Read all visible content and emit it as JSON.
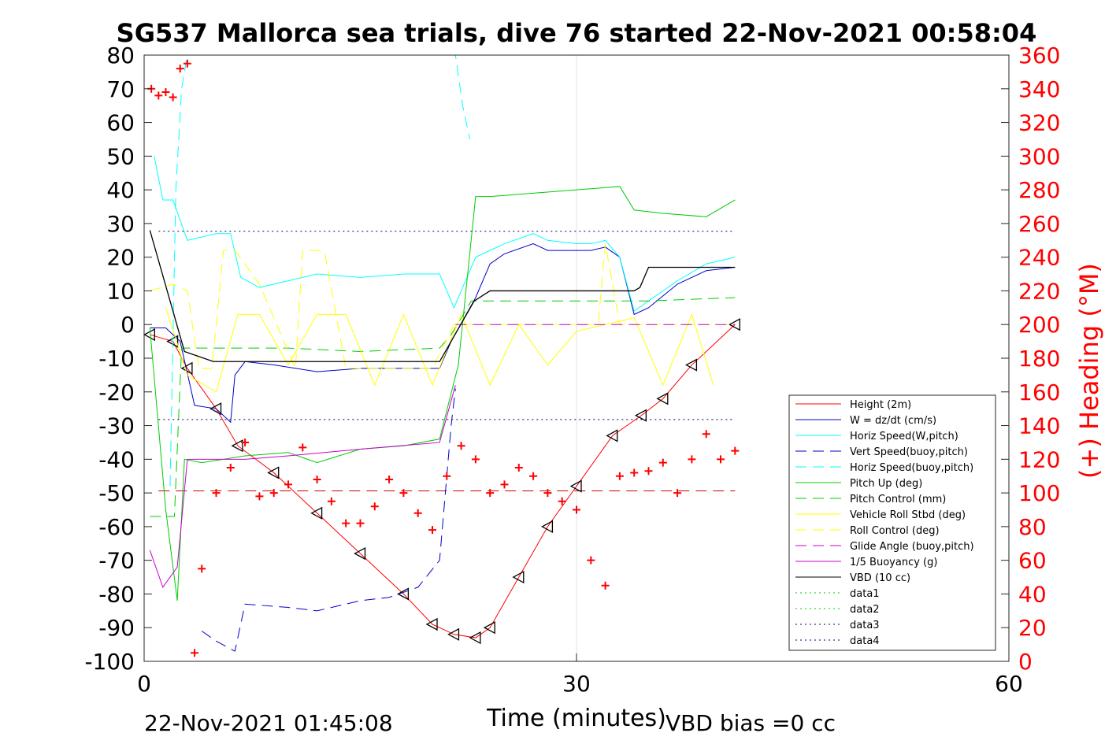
{
  "chart_data": {
    "type": "line",
    "title": "SG537 Mallorca sea trials, dive 76 started 22-Nov-2021 00:58:04",
    "xlabel": "Time (minutes)",
    "ylabel_right": "(+) Heading (°M)",
    "xlim": [
      0,
      60
    ],
    "ylim": [
      -100,
      80
    ],
    "ylim_right": [
      0,
      360
    ],
    "x_ticks": [
      "0",
      "30",
      "60"
    ],
    "y_ticks": [
      "80",
      "70",
      "60",
      "50",
      "40",
      "30",
      "20",
      "10",
      "0",
      "-10",
      "-20",
      "-30",
      "-40",
      "-50",
      "-60",
      "-70",
      "-80",
      "-90",
      "-100"
    ],
    "y_right_ticks": [
      "360",
      "340",
      "320",
      "300",
      "280",
      "260",
      "240",
      "220",
      "200",
      "180",
      "160",
      "140",
      "120",
      "100",
      "80",
      "60",
      "40",
      "20",
      "0"
    ],
    "grid": "x-only",
    "legend_position": "bottom-right",
    "footer_left": "22-Nov-2021 01:45:08",
    "footer_right": "VBD bias =0 cc",
    "series": [
      {
        "name": "Height (2m)",
        "color": "#ff0000",
        "style": "solid",
        "marker": "triangle",
        "x": [
          0.4,
          2,
          3,
          5,
          6.5,
          9,
          12,
          15,
          18,
          20,
          21.5,
          23,
          24,
          26,
          28,
          30,
          32.5,
          34.5,
          36,
          38,
          41
        ],
        "y": [
          -3,
          -5,
          -13,
          -25,
          -36,
          -44,
          -56,
          -68,
          -80,
          -89,
          -92,
          -93,
          -90,
          -75,
          -60,
          -48,
          -33,
          -27,
          -22,
          -12,
          0
        ]
      },
      {
        "name": "W = dz/dt (cm/s)",
        "color": "#0000cc",
        "style": "solid",
        "x": [
          0.4,
          1.5,
          2.5,
          3.5,
          5,
          6,
          6.3,
          7,
          9,
          12,
          15,
          18,
          20.5,
          21.3,
          23,
          24,
          25,
          27,
          28,
          30,
          31,
          32,
          33,
          34,
          35,
          37,
          39,
          41
        ],
        "y": [
          -1,
          -1,
          -5,
          -24,
          -25,
          -29,
          -15,
          -11,
          -12,
          -14,
          -13,
          -13,
          -13,
          -5,
          8,
          18,
          21,
          24,
          22,
          22,
          22,
          23,
          20,
          3,
          5,
          12,
          16,
          17
        ]
      },
      {
        "name": "Horiz Speed(W,pitch)",
        "color": "#00ffff",
        "style": "solid",
        "x": [
          0.7,
          1.3,
          2,
          3,
          5,
          6,
          6.7,
          8,
          10,
          12,
          15,
          18,
          20.5,
          21.5,
          23,
          24,
          25,
          27,
          28,
          30,
          31,
          32,
          33,
          34,
          35,
          37,
          39,
          41
        ],
        "y": [
          50,
          37,
          37,
          25,
          27,
          27,
          14,
          11,
          13,
          15,
          14,
          15,
          15,
          5,
          20,
          22,
          24,
          27,
          25,
          24,
          24,
          25,
          20,
          4,
          7,
          13,
          18,
          20
        ]
      },
      {
        "name": "Vert Speed(buoy,pitch)",
        "color": "#0000cc",
        "style": "dashed",
        "x": [
          4,
          5,
          6.3,
          7,
          10,
          12,
          15,
          17,
          19,
          20.5,
          21.3,
          21.6
        ],
        "y": [
          -91,
          -94,
          -97,
          -83,
          -84,
          -85,
          -82,
          -81,
          -78,
          -70,
          -30,
          -19
        ]
      },
      {
        "name": "Horiz Speed(buoy,pitch)",
        "color": "#00ffff",
        "style": "dashed",
        "x": [
          1.8,
          2.2,
          2.6,
          3.0,
          21.6,
          22.1,
          22.6
        ],
        "y": [
          -48,
          40,
          70,
          80,
          80,
          65,
          55
        ]
      },
      {
        "name": "Pitch Up (deg)",
        "color": "#00cc00",
        "style": "solid",
        "x": [
          0.4,
          1.5,
          2.3,
          2.8,
          4,
          7,
          10,
          12,
          15,
          18,
          20.5,
          21.8,
          23,
          24,
          27,
          30,
          33,
          34,
          36,
          39,
          41
        ],
        "y": [
          -1,
          -55,
          -82,
          -40,
          -41,
          -39,
          -38,
          -41,
          -37,
          -36,
          -34,
          -12,
          38,
          38,
          39,
          40,
          41,
          34,
          33,
          32,
          37
        ]
      },
      {
        "name": "Pitch Control (mm)",
        "color": "#00cc00",
        "style": "dashed",
        "x": [
          0.4,
          2.1,
          2.6,
          4,
          10,
          15,
          20.5,
          21.3,
          22.3,
          22.7,
          28,
          35,
          41
        ],
        "y": [
          -57,
          -57,
          -7,
          -7,
          -7,
          -8,
          -7,
          -3,
          4,
          7,
          7,
          7,
          8
        ]
      },
      {
        "name": "Vehicle Roll Stbd (deg)",
        "color": "#ffff00",
        "style": "solid",
        "x": [
          1.5,
          3,
          5,
          6.5,
          8,
          10,
          12,
          14,
          16,
          18,
          20,
          22,
          24,
          26,
          28,
          30,
          32,
          34,
          36,
          38,
          39.5
        ],
        "y": [
          5,
          -15,
          -20,
          3,
          3,
          -12,
          3,
          3,
          -18,
          3,
          -18,
          3,
          -18,
          0,
          -12,
          -2,
          0,
          2,
          -18,
          3,
          -18
        ]
      },
      {
        "name": "Roll Control (deg)",
        "color": "#ffff00",
        "style": "dashed",
        "x": [
          0.4,
          2,
          3,
          3.8,
          4.7,
          5.5,
          6.3,
          8,
          10.5,
          11,
          12.5,
          14,
          15,
          20,
          21.5,
          31.5,
          32,
          33,
          41
        ],
        "y": [
          10,
          12,
          10,
          -13,
          -13,
          22,
          22,
          12,
          -13,
          22,
          22,
          -13,
          -13,
          -13,
          0,
          0,
          24,
          0,
          0
        ]
      },
      {
        "name": "Glide Angle (buoy,pitch)",
        "color": "#cc00cc",
        "style": "dashed",
        "x": [
          21.6,
          22.2,
          41
        ],
        "y": [
          0,
          0,
          0
        ]
      },
      {
        "name": "1/5 Buoyancy (g)",
        "color": "#cc00cc",
        "style": "solid",
        "x": [
          0.4,
          1.3,
          2.3,
          3,
          7,
          10,
          15,
          20.5,
          21.6
        ],
        "y": [
          -67,
          -78,
          -72,
          -40,
          -40,
          -39,
          -37,
          -35,
          -18
        ]
      },
      {
        "name": "VBD (10 cc)",
        "color": "#000000",
        "style": "solid",
        "x": [
          0.4,
          2.8,
          4.8,
          20.5,
          22.9,
          24,
          27,
          32,
          34,
          34.4,
          35,
          36,
          41
        ],
        "y": [
          28,
          -8,
          -11,
          -11,
          7,
          10,
          10,
          10,
          10,
          11,
          17,
          17,
          17
        ]
      },
      {
        "name": "data1",
        "color": "#00cc00",
        "style": "dotted",
        "x": [],
        "y": []
      },
      {
        "name": "data2",
        "color": "#00cc00",
        "style": "dotted",
        "x": [],
        "y": []
      },
      {
        "name": "data3",
        "color": "#000066",
        "style": "dotted",
        "x": [
          1,
          41
        ],
        "y": [
          27.7,
          27.7
        ]
      },
      {
        "name": "data4",
        "color": "#000066",
        "style": "dotted",
        "x": [
          1,
          41
        ],
        "y": [
          -28.2,
          -28.2
        ]
      }
    ],
    "reference_lines": [
      {
        "color": "#cc0000",
        "style": "dashed",
        "x": [
          1,
          41
        ],
        "y": [
          -49.4,
          -49.4
        ]
      }
    ],
    "heading": {
      "axis": "right",
      "color": "#ff0000",
      "marker": "+",
      "x": [
        0.5,
        1,
        1.5,
        2,
        2.5,
        3,
        3.5,
        4,
        5,
        6,
        7,
        8,
        9,
        10,
        11,
        12,
        13,
        14,
        15,
        16,
        17,
        18,
        19,
        20,
        21,
        22,
        23,
        24,
        25,
        26,
        27,
        28,
        29,
        30,
        31,
        32,
        33,
        34,
        35,
        36,
        37,
        38,
        39,
        40,
        41
      ],
      "y": [
        340,
        336,
        338,
        335,
        352,
        355,
        5,
        55,
        100,
        115,
        130,
        98,
        100,
        105,
        127,
        108,
        95,
        82,
        82,
        92,
        108,
        100,
        88,
        78,
        110,
        128,
        120,
        100,
        105,
        115,
        110,
        100,
        95,
        90,
        60,
        45,
        110,
        112,
        113,
        118,
        100,
        120,
        135,
        120,
        125
      ]
    }
  }
}
